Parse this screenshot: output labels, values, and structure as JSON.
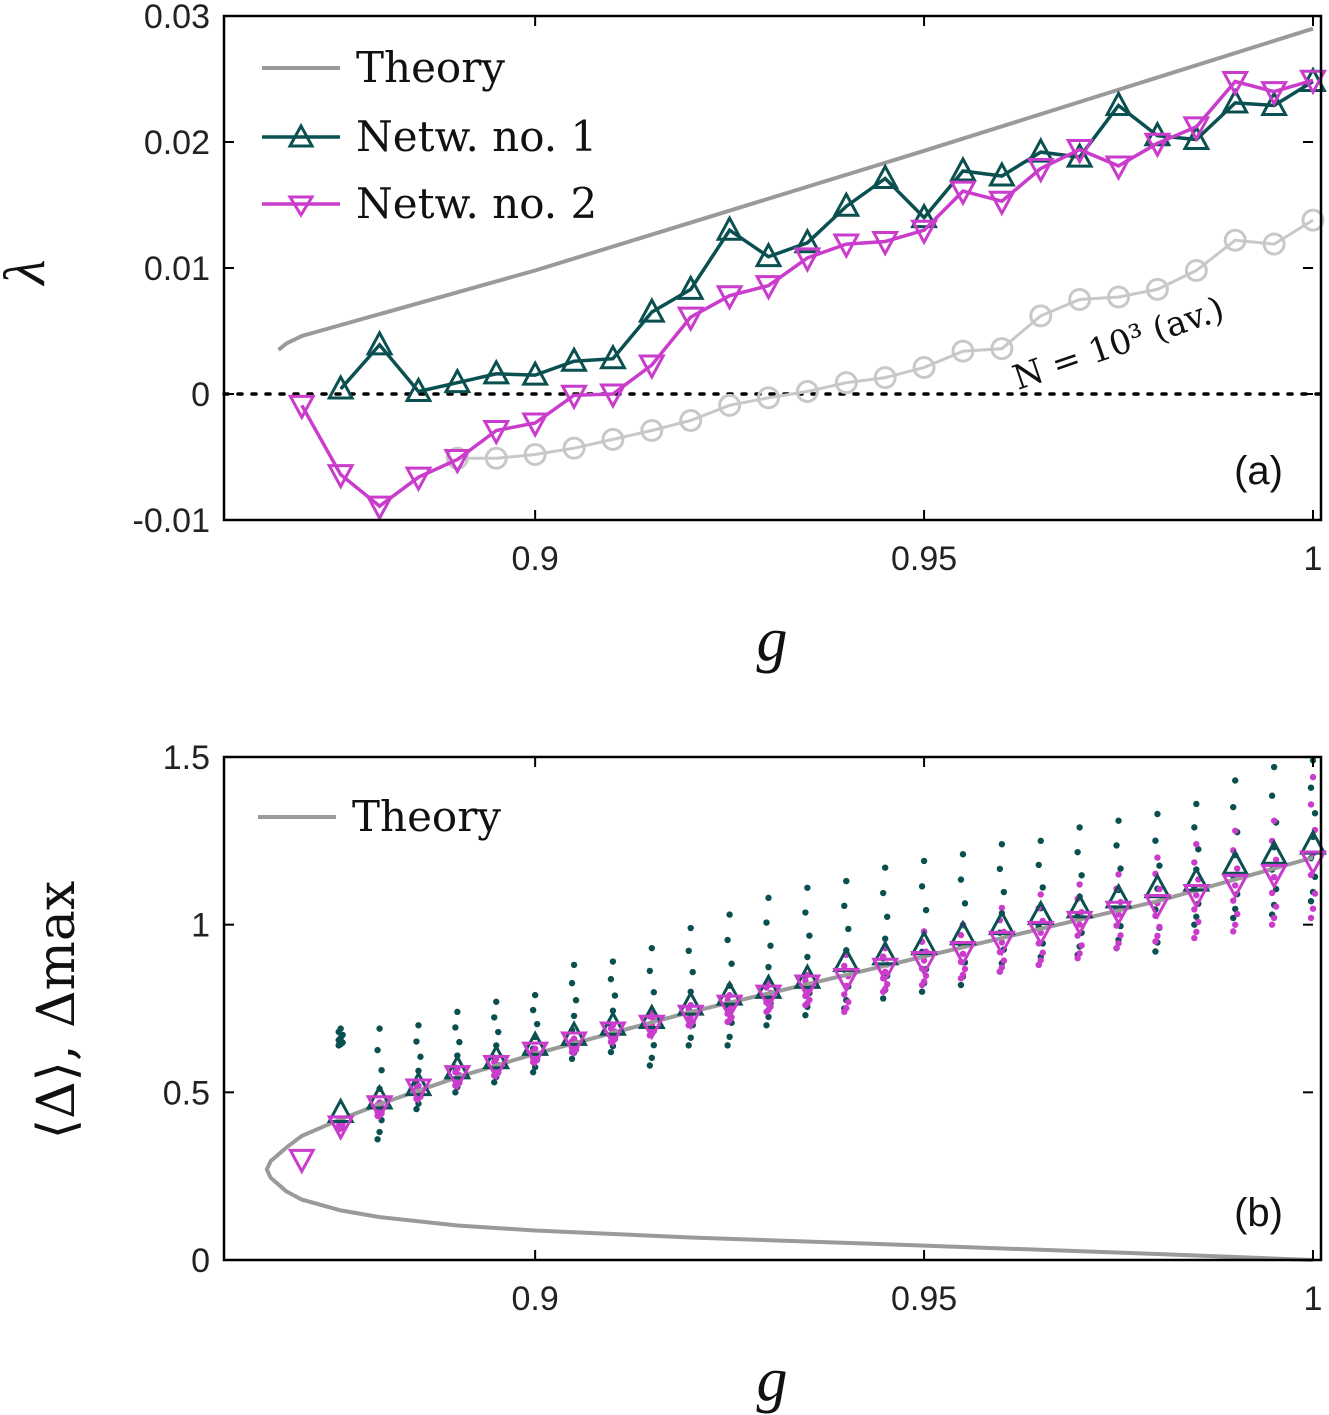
{
  "colors": {
    "theory": "#9a9a9a",
    "net1": "#0b5050",
    "net2": "#c93ccc",
    "avg": "#c8c8c8",
    "axis": "#000000"
  },
  "chart_data": [
    {
      "id": "a",
      "type": "line",
      "panel_label": "(a)",
      "xlabel": "g",
      "ylabel": "λ",
      "xlim": [
        0.86,
        1.0
      ],
      "ylim": [
        -0.01,
        0.03
      ],
      "xticks": [
        0.9,
        0.95,
        1.0
      ],
      "xtick_labels": [
        "0.9",
        "0.95",
        "1"
      ],
      "yticks": [
        -0.01,
        0,
        0.01,
        0.02,
        0.03
      ],
      "ytick_labels": [
        "-0.01",
        "0",
        "0.01",
        "0.02",
        "0.03"
      ],
      "legend": [
        "Theory",
        "Netw. no. 1",
        "Netw. no. 2"
      ],
      "annotation": "N = 10³ (av.)",
      "zero_line": 0,
      "series": [
        {
          "name": "Theory",
          "x": [
            0.867,
            0.868,
            0.87,
            0.9,
            0.95,
            1.0
          ],
          "y": [
            0.0035,
            0.004,
            0.0046,
            0.0098,
            0.0193,
            0.029
          ]
        },
        {
          "name": "Netw. no. 1",
          "x": [
            0.875,
            0.88,
            0.885,
            0.89,
            0.895,
            0.9,
            0.905,
            0.91,
            0.915,
            0.92,
            0.925,
            0.93,
            0.935,
            0.94,
            0.945,
            0.95,
            0.955,
            0.96,
            0.965,
            0.97,
            0.975,
            0.98,
            0.985,
            0.99,
            0.995,
            1.0
          ],
          "y": [
            0.0004,
            0.0039,
            0.0002,
            0.0009,
            0.0016,
            0.0015,
            0.0026,
            0.0028,
            0.0065,
            0.0083,
            0.013,
            0.0109,
            0.012,
            0.0149,
            0.0171,
            0.014,
            0.0177,
            0.0173,
            0.0192,
            0.0188,
            0.0229,
            0.0205,
            0.0202,
            0.0231,
            0.0229,
            0.0248
          ]
        },
        {
          "name": "Netw. no. 2",
          "x": [
            0.87,
            0.875,
            0.88,
            0.885,
            0.89,
            0.895,
            0.9,
            0.905,
            0.91,
            0.915,
            0.92,
            0.925,
            0.93,
            0.935,
            0.94,
            0.945,
            0.95,
            0.955,
            0.96,
            0.965,
            0.97,
            0.975,
            0.98,
            0.985,
            0.99,
            0.995,
            1.0
          ],
          "y": [
            -0.0009,
            -0.0064,
            -0.0089,
            -0.0066,
            -0.0052,
            -0.0029,
            -0.0023,
            -0.0001,
            0.0,
            0.0023,
            0.0061,
            0.0078,
            0.0086,
            0.0108,
            0.0119,
            0.0121,
            0.013,
            0.0161,
            0.0153,
            0.0179,
            0.0194,
            0.0181,
            0.0199,
            0.0212,
            0.0248,
            0.024,
            0.0249
          ]
        },
        {
          "name": "N = 10³ (av.)",
          "x": [
            0.89,
            0.895,
            0.9,
            0.905,
            0.91,
            0.915,
            0.92,
            0.925,
            0.93,
            0.935,
            0.94,
            0.945,
            0.95,
            0.955,
            0.96,
            0.965,
            0.97,
            0.975,
            0.98,
            0.985,
            0.99,
            0.995,
            1.0
          ],
          "y": [
            -0.0051,
            -0.0051,
            -0.0048,
            -0.0043,
            -0.0036,
            -0.0029,
            -0.0021,
            -0.0009,
            -0.0003,
            0.0002,
            0.0009,
            0.0013,
            0.0021,
            0.0034,
            0.0036,
            0.0062,
            0.0075,
            0.0077,
            0.0083,
            0.0098,
            0.0122,
            0.0119,
            0.0138
          ]
        }
      ]
    },
    {
      "id": "b",
      "type": "scatter",
      "panel_label": "(b)",
      "xlabel": "g",
      "ylabel": "⟨Δ⟩, Δmax",
      "xlim": [
        0.86,
        1.0
      ],
      "ylim": [
        0,
        1.5
      ],
      "xticks": [
        0.9,
        0.95,
        1.0
      ],
      "xtick_labels": [
        "0.9",
        "0.95",
        "1"
      ],
      "yticks": [
        0,
        0.5,
        1,
        1.5
      ],
      "ytick_labels": [
        "0",
        "0.5",
        "1",
        "1.5"
      ],
      "legend": [
        "Theory"
      ],
      "theory_curve": {
        "upper": {
          "x": [
            0.8655,
            0.866,
            0.868,
            0.87,
            0.875,
            0.88,
            0.89,
            0.9,
            0.92,
            0.95,
            0.98,
            1.0
          ],
          "y": [
            0.27,
            0.295,
            0.335,
            0.37,
            0.42,
            0.465,
            0.545,
            0.615,
            0.74,
            0.905,
            1.07,
            1.2
          ]
        },
        "lower": {
          "x": [
            0.8655,
            0.866,
            0.868,
            0.87,
            0.875,
            0.88,
            0.89,
            0.9,
            0.92,
            0.95,
            0.98,
            1.0
          ],
          "y": [
            0.27,
            0.245,
            0.205,
            0.18,
            0.148,
            0.128,
            0.103,
            0.088,
            0.067,
            0.043,
            0.018,
            0.0
          ]
        }
      },
      "series": [
        {
          "name": "Netw. no. 1 ⟨Δ⟩",
          "x": [
            0.875,
            0.88,
            0.885,
            0.89,
            0.895,
            0.9,
            0.905,
            0.91,
            0.915,
            0.92,
            0.925,
            0.93,
            0.935,
            0.94,
            0.945,
            0.95,
            0.955,
            0.96,
            0.965,
            0.97,
            0.975,
            0.98,
            0.985,
            0.99,
            0.995,
            1.0
          ],
          "y": [
            0.44,
            0.48,
            0.52,
            0.57,
            0.6,
            0.64,
            0.67,
            0.7,
            0.72,
            0.76,
            0.79,
            0.81,
            0.84,
            0.89,
            0.91,
            0.94,
            0.97,
            1.0,
            1.03,
            1.05,
            1.08,
            1.11,
            1.13,
            1.18,
            1.21,
            1.24
          ]
        },
        {
          "name": "Netw. no. 2 ⟨Δ⟩",
          "x": [
            0.87,
            0.875,
            0.88,
            0.885,
            0.89,
            0.895,
            0.9,
            0.905,
            0.91,
            0.915,
            0.92,
            0.925,
            0.93,
            0.935,
            0.94,
            0.945,
            0.95,
            0.955,
            0.96,
            0.965,
            0.97,
            0.975,
            0.98,
            0.985,
            0.99,
            0.995,
            1.0
          ],
          "y": [
            0.3,
            0.4,
            0.46,
            0.51,
            0.55,
            0.58,
            0.62,
            0.65,
            0.68,
            0.7,
            0.73,
            0.76,
            0.79,
            0.82,
            0.84,
            0.87,
            0.89,
            0.92,
            0.95,
            0.98,
            1.01,
            1.04,
            1.06,
            1.09,
            1.12,
            1.15,
            1.19
          ]
        },
        {
          "name": "Netw. no. 1 Δmax",
          "x": [
            0.875,
            0.88,
            0.885,
            0.89,
            0.895,
            0.9,
            0.905,
            0.91,
            0.915,
            0.92,
            0.925,
            0.93,
            0.935,
            0.94,
            0.945,
            0.95,
            0.955,
            0.96,
            0.965,
            0.97,
            0.975,
            0.98,
            0.985,
            0.99,
            0.995,
            1.0
          ],
          "ymin": [
            0.64,
            0.36,
            0.45,
            0.5,
            0.53,
            0.56,
            0.6,
            0.62,
            0.58,
            0.64,
            0.64,
            0.7,
            0.73,
            0.75,
            0.78,
            0.8,
            0.82,
            0.86,
            0.88,
            0.91,
            0.93,
            0.92,
            1.0,
            1.02,
            1.03,
            1.07
          ],
          "ymax": [
            0.69,
            0.69,
            0.7,
            0.74,
            0.77,
            0.79,
            0.88,
            0.89,
            0.93,
            0.99,
            1.03,
            1.08,
            1.11,
            1.13,
            1.17,
            1.19,
            1.21,
            1.24,
            1.25,
            1.29,
            1.31,
            1.33,
            1.36,
            1.43,
            1.47,
            1.49
          ]
        },
        {
          "name": "Netw. no. 2 Δmax",
          "x": [
            0.875,
            0.88,
            0.885,
            0.89,
            0.895,
            0.9,
            0.905,
            0.91,
            0.915,
            0.92,
            0.925,
            0.93,
            0.935,
            0.94,
            0.945,
            0.95,
            0.955,
            0.96,
            0.965,
            0.97,
            0.975,
            0.98,
            0.985,
            0.99,
            0.995,
            1.0
          ],
          "ymin": [
            0.39,
            0.43,
            0.48,
            0.52,
            0.55,
            0.59,
            0.62,
            0.65,
            0.67,
            0.7,
            0.71,
            0.74,
            0.76,
            0.74,
            0.8,
            0.82,
            0.84,
            0.86,
            0.88,
            0.9,
            0.93,
            0.95,
            0.96,
            0.98,
            1.0,
            1.02
          ],
          "ymax": [
            0.42,
            0.47,
            0.52,
            0.57,
            0.6,
            0.63,
            0.66,
            0.7,
            0.74,
            0.76,
            0.79,
            0.83,
            0.85,
            0.91,
            0.93,
            0.98,
            1.0,
            1.05,
            1.09,
            1.12,
            1.15,
            1.2,
            1.24,
            1.28,
            1.31,
            1.44
          ]
        }
      ]
    }
  ]
}
